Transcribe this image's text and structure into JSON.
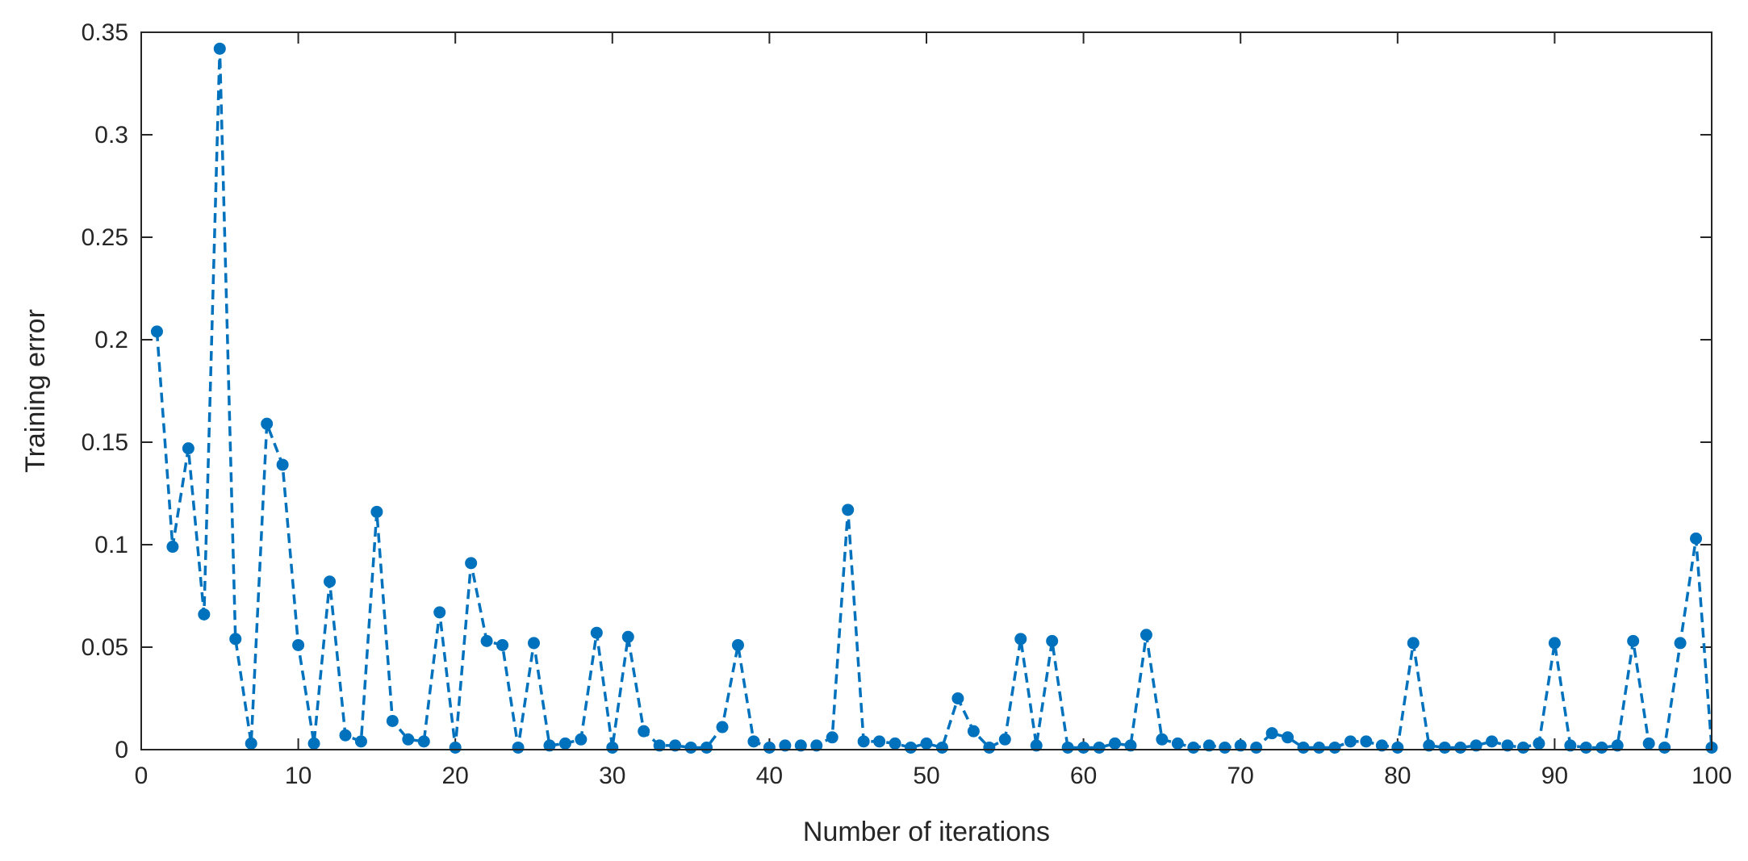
{
  "chart_data": {
    "type": "line",
    "title": "",
    "xlabel": "Number of iterations",
    "ylabel": "Training error",
    "xlim": [
      0,
      100
    ],
    "ylim": [
      0,
      0.35
    ],
    "xticks": [
      0,
      10,
      20,
      30,
      40,
      50,
      60,
      70,
      80,
      90,
      100
    ],
    "xtick_labels": [
      "0",
      "10",
      "20",
      "30",
      "40",
      "50",
      "60",
      "70",
      "80",
      "90",
      "100"
    ],
    "yticks": [
      0,
      0.05,
      0.1,
      0.15,
      0.2,
      0.25,
      0.3,
      0.35
    ],
    "ytick_labels": [
      "0",
      "0.05",
      "0.1",
      "0.15",
      "0.2",
      "0.25",
      "0.3",
      "0.35"
    ],
    "grid": false,
    "line_style": "dashed",
    "marker": "filled-circle",
    "color": "#0072BD",
    "x": [
      1,
      2,
      3,
      4,
      5,
      6,
      7,
      8,
      9,
      10,
      11,
      12,
      13,
      14,
      15,
      16,
      17,
      18,
      19,
      20,
      21,
      22,
      23,
      24,
      25,
      26,
      27,
      28,
      29,
      30,
      31,
      32,
      33,
      34,
      35,
      36,
      37,
      38,
      39,
      40,
      41,
      42,
      43,
      44,
      45,
      46,
      47,
      48,
      49,
      50,
      51,
      52,
      53,
      54,
      55,
      56,
      57,
      58,
      59,
      60,
      61,
      62,
      63,
      64,
      65,
      66,
      67,
      68,
      69,
      70,
      71,
      72,
      73,
      74,
      75,
      76,
      77,
      78,
      79,
      80,
      81,
      82,
      83,
      84,
      85,
      86,
      87,
      88,
      89,
      90,
      91,
      92,
      93,
      94,
      95,
      96,
      97,
      98,
      99,
      100
    ],
    "series": [
      {
        "values": [
          0.204,
          0.099,
          0.147,
          0.066,
          0.342,
          0.054,
          0.003,
          0.159,
          0.139,
          0.051,
          0.003,
          0.082,
          0.007,
          0.004,
          0.116,
          0.014,
          0.005,
          0.004,
          0.067,
          0.001,
          0.091,
          0.053,
          0.051,
          0.001,
          0.052,
          0.002,
          0.003,
          0.005,
          0.057,
          0.001,
          0.055,
          0.009,
          0.002,
          0.002,
          0.001,
          0.001,
          0.011,
          0.051,
          0.004,
          0.001,
          0.002,
          0.002,
          0.002,
          0.006,
          0.117,
          0.004,
          0.004,
          0.003,
          0.001,
          0.003,
          0.001,
          0.025,
          0.009,
          0.001,
          0.005,
          0.054,
          0.002,
          0.053,
          0.001,
          0.001,
          0.001,
          0.003,
          0.002,
          0.056,
          0.005,
          0.003,
          0.001,
          0.002,
          0.001,
          0.002,
          0.001,
          0.008,
          0.006,
          0.001,
          0.001,
          0.001,
          0.004,
          0.004,
          0.002,
          0.001,
          0.052,
          0.002,
          0.001,
          0.001,
          0.002,
          0.004,
          0.002,
          0.001,
          0.003,
          0.052,
          0.002,
          0.001,
          0.001,
          0.002,
          0.053,
          0.003,
          0.001,
          0.052,
          0.103,
          0.001
        ]
      }
    ]
  }
}
